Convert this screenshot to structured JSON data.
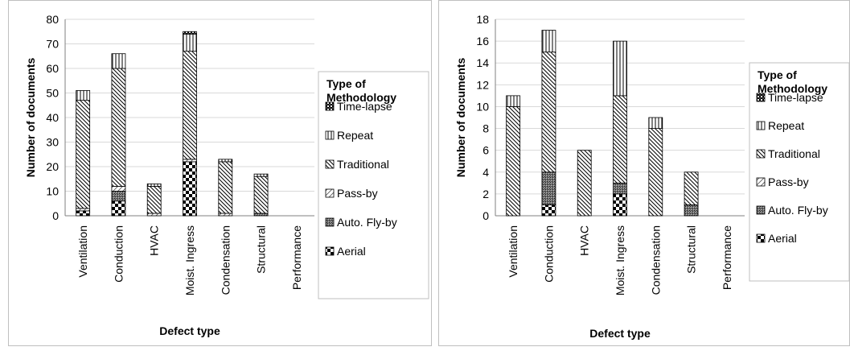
{
  "colors": {
    "ink": "#000000",
    "grid": "#d9d9d9",
    "axis": "#808080",
    "border": "#bfbfbf"
  },
  "patterns": {
    "Time-lapse": "dense-crosshatch",
    "Repeat": "vertical-lines",
    "Traditional": "diagonal-lines",
    "Pass-by": "light-diagonal",
    "Auto. Fly-by": "dark-crosshatch",
    "Aerial": "checkerboard"
  },
  "chart_data": [
    {
      "type": "bar",
      "stacked": true,
      "xlabel": "Defect type",
      "ylabel": "Number of documents",
      "ylim": [
        0,
        80
      ],
      "yticks": [
        0,
        10,
        20,
        30,
        40,
        50,
        60,
        70,
        80
      ],
      "grid": true,
      "legend_title": [
        "Type of",
        "Methodology"
      ],
      "legend_position": "right",
      "categories": [
        "Ventilation",
        "Conduction",
        "HVAC",
        "Moist. Ingress",
        "Condensation",
        "Structural",
        "Performance"
      ],
      "series": [
        {
          "name": "Aerial",
          "values": [
            2,
            6,
            0,
            22,
            0,
            0,
            0
          ]
        },
        {
          "name": "Auto. Fly-by",
          "values": [
            0,
            4,
            0,
            0,
            0,
            1,
            0
          ]
        },
        {
          "name": "Pass-by",
          "values": [
            1,
            2,
            1,
            1,
            1,
            0,
            0
          ]
        },
        {
          "name": "Traditional",
          "values": [
            44,
            48,
            11,
            44,
            21,
            15,
            0
          ]
        },
        {
          "name": "Repeat",
          "values": [
            4,
            6,
            1,
            7,
            1,
            1,
            0
          ]
        },
        {
          "name": "Time-lapse",
          "values": [
            0,
            0,
            0,
            1,
            0,
            0,
            0
          ]
        }
      ]
    },
    {
      "type": "bar",
      "stacked": true,
      "xlabel": "Defect type",
      "ylabel": "Number of documents",
      "ylim": [
        0,
        18
      ],
      "yticks": [
        0,
        2,
        4,
        6,
        8,
        10,
        12,
        14,
        16,
        18
      ],
      "grid": true,
      "legend_title": [
        "Type of",
        "Methodology"
      ],
      "legend_position": "right",
      "categories": [
        "Ventilation",
        "Conduction",
        "HVAC",
        "Moist. Ingress",
        "Condensation",
        "Structural",
        "Performance"
      ],
      "series": [
        {
          "name": "Aerial",
          "values": [
            0,
            1,
            0,
            2,
            0,
            0,
            0
          ]
        },
        {
          "name": "Auto. Fly-by",
          "values": [
            0,
            3,
            0,
            1,
            0,
            1,
            0
          ]
        },
        {
          "name": "Pass-by",
          "values": [
            0,
            0,
            0,
            0,
            0,
            0,
            0
          ]
        },
        {
          "name": "Traditional",
          "values": [
            10,
            11,
            6,
            8,
            8,
            3,
            0
          ]
        },
        {
          "name": "Repeat",
          "values": [
            1,
            2,
            0,
            5,
            1,
            0,
            0
          ]
        },
        {
          "name": "Time-lapse",
          "values": [
            0,
            0,
            0,
            0,
            0,
            0,
            0
          ]
        }
      ]
    }
  ]
}
